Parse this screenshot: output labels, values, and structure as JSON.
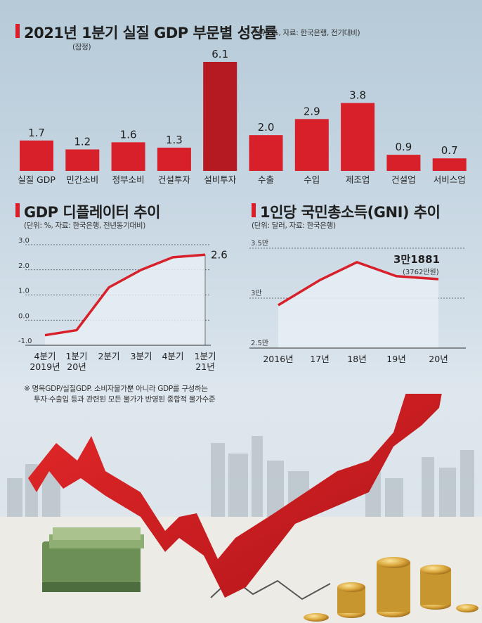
{
  "gdp_section": {
    "title": "2021년 1분기 실질 GDP 부문별 성장률",
    "source_note": "(단위: %, 자료: 한국은행, 전기대비)",
    "tag": "(잠정)"
  },
  "deflator_section": {
    "title": "GDP 디플레이터 추이",
    "source_note": "(단위: %, 자료: 한국은행, 전년동기대비)"
  },
  "gni_section": {
    "title": "1인당 국민총소득(GNI) 추이",
    "source_note": "(단위: 달러, 자료: 한국은행)",
    "latest_label": "3만1881",
    "latest_sub": "(3762만원)"
  },
  "footnote": {
    "line1": "※ 명목GDP/실질GDP. 소비자물가뿐 아니라 GDP를 구성하는",
    "line2": "투자·수출입 등과 관련된 모든 물가가 반영된 종합적 물가수준"
  },
  "colors": {
    "accent": "#d8202a",
    "highlight": "#b41a1f",
    "line": "#d8202a",
    "area": "#e6eef5"
  },
  "chart_data": [
    {
      "type": "bar",
      "title": "2021년 1분기 실질 GDP 부문별 성장률",
      "categories": [
        "실질 GDP",
        "민간소비",
        "정부소비",
        "건설투자",
        "설비투자",
        "수출",
        "수입",
        "제조업",
        "건설업",
        "서비스업"
      ],
      "values": [
        1.7,
        1.2,
        1.6,
        1.3,
        6.1,
        2.0,
        2.9,
        3.8,
        0.9,
        0.7
      ],
      "value_labels": [
        "1.7",
        "1.2",
        "1.6",
        "1.3",
        "6.1",
        "2.0",
        "2.9",
        "3.8",
        "0.9",
        "0.7"
      ],
      "highlight_index": 4
    },
    {
      "type": "area",
      "title": "GDP 디플레이터 추이",
      "categories": [
        "4분기|2019년",
        "1분기|20년",
        "2분기",
        "3분기",
        "4분기",
        "1분기|21년"
      ],
      "values": [
        -0.6,
        -0.4,
        1.3,
        2.0,
        2.5,
        2.6
      ],
      "yticks": [
        "3.0",
        "2.0",
        "1.0",
        "0.0",
        "-1.0"
      ],
      "ylim": [
        -1.0,
        3.0
      ],
      "last_label": "2.6"
    },
    {
      "type": "area",
      "title": "1인당 국민총소득(GNI) 추이",
      "categories": [
        "2016년",
        "17년",
        "18년",
        "19년",
        "20년"
      ],
      "values": [
        29.3,
        31.8,
        33.6,
        32.2,
        31.9
      ],
      "unit": "천 달러(추정)",
      "yticks": [
        "3.5만",
        "3만",
        "2.5만"
      ],
      "ylim": [
        25.0,
        35.0
      ]
    }
  ]
}
